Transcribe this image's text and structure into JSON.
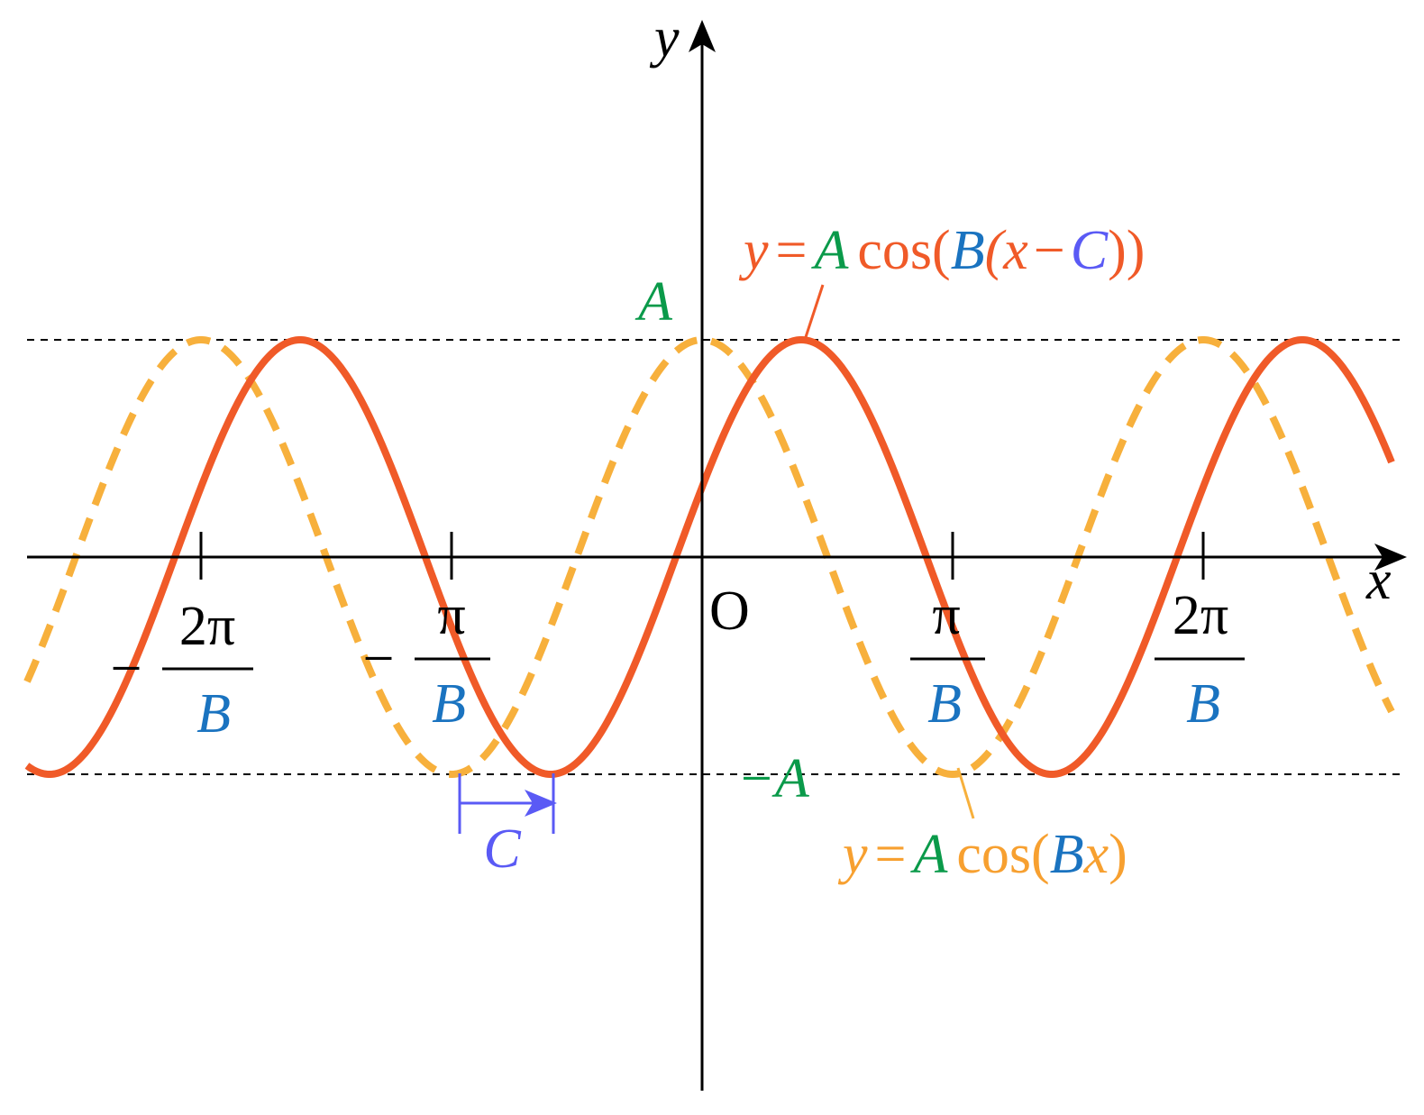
{
  "axes": {
    "x": "x",
    "y": "y",
    "origin": "O"
  },
  "levels": {
    "top": "A",
    "bottom": "−A"
  },
  "shift": "C",
  "ticks": [
    {
      "sign": "−",
      "numerator": "2π",
      "denominator": "B"
    },
    {
      "sign": "−",
      "numerator": "π",
      "denominator": "B"
    },
    {
      "numerator": "π",
      "denominator": "B"
    },
    {
      "numerator": "2π",
      "denominator": "B"
    }
  ],
  "curves": [
    {
      "parts": [
        "y",
        "=",
        "A",
        "cos",
        "(",
        "B",
        "(x",
        "−",
        "C",
        "))"
      ]
    },
    {
      "parts": [
        "y",
        "=",
        "A",
        "cos",
        "(",
        "B",
        "x",
        ")"
      ]
    }
  ]
}
